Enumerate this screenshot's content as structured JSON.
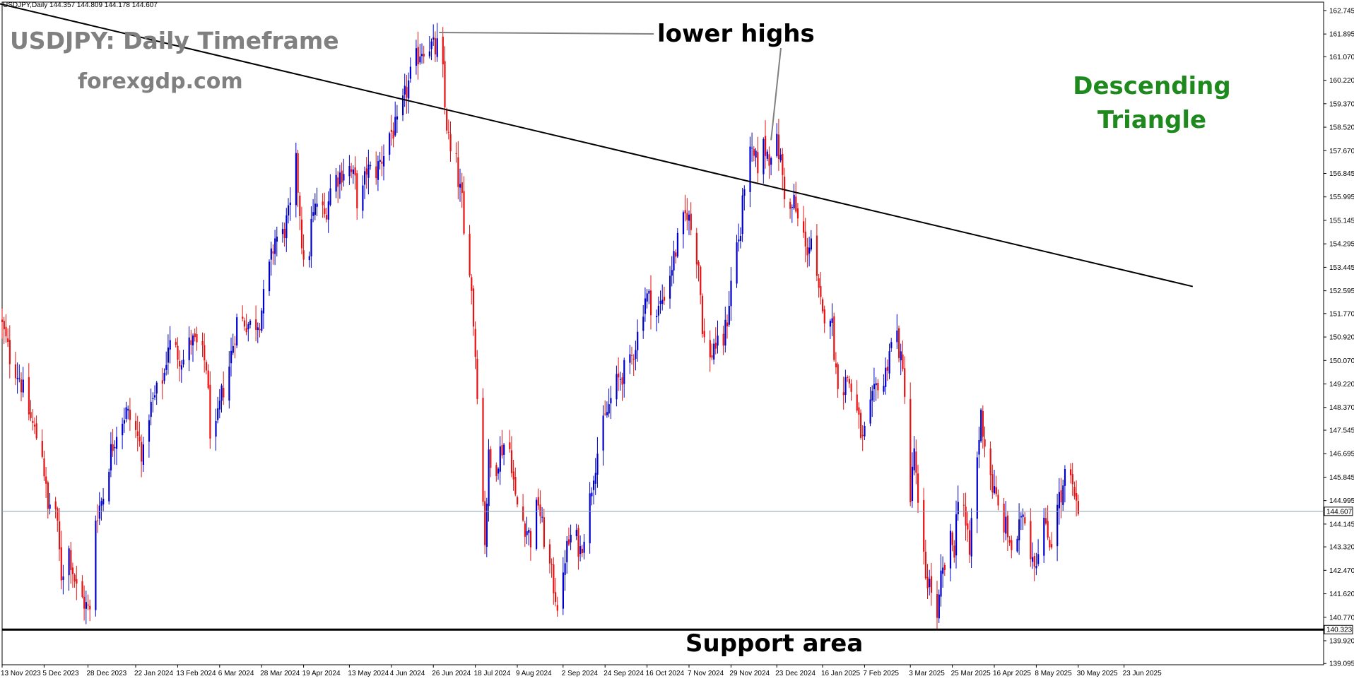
{
  "header": {
    "symbol_info": "USDJPY,Daily  144.357 144.809 144.178 144.607"
  },
  "annotations": {
    "title": "USDJPY: Daily Timeframe",
    "site": "forexgdp.com",
    "pattern_line1": "Descending",
    "pattern_line2": "Triangle",
    "lower_highs": "lower highs",
    "support_area": "Support area"
  },
  "colors": {
    "bull": "#0000cc",
    "bear": "#e81010",
    "pattern": "#1e8a1e",
    "annotation_gray": "#808080",
    "current_line": "#8aa0b8"
  },
  "chart_data": {
    "type": "candlestick",
    "title": "USDJPY: Daily Timeframe",
    "ylim": [
      139.05,
      163.05
    ],
    "y_ticks": [
      "162.745",
      "161.895",
      "161.070",
      "160.220",
      "159.370",
      "158.520",
      "157.670",
      "156.845",
      "155.995",
      "155.145",
      "154.295",
      "153.445",
      "152.595",
      "151.770",
      "150.920",
      "150.070",
      "149.220",
      "148.370",
      "147.545",
      "146.695",
      "145.845",
      "144.995",
      "144.145",
      "143.320",
      "142.470",
      "141.620",
      "140.770",
      "139.920",
      "139.095"
    ],
    "x_ticks": [
      {
        "label": "13 Nov 2023",
        "day": 0
      },
      {
        "label": "5 Dec 2023",
        "day": 22
      },
      {
        "label": "28 Dec 2023",
        "day": 45
      },
      {
        "label": "22 Jan 2024",
        "day": 70
      },
      {
        "label": "13 Feb 2024",
        "day": 92
      },
      {
        "label": "6 Mar 2024",
        "day": 114
      },
      {
        "label": "28 Mar 2024",
        "day": 136
      },
      {
        "label": "19 Apr 2024",
        "day": 158
      },
      {
        "label": "13 May 2024",
        "day": 182
      },
      {
        "label": "4 Jun 2024",
        "day": 204
      },
      {
        "label": "26 Jun 2024",
        "day": 226
      },
      {
        "label": "18 Jul 2024",
        "day": 248
      },
      {
        "label": "9 Aug 2024",
        "day": 270
      },
      {
        "label": "2 Sep 2024",
        "day": 294
      },
      {
        "label": "24 Sep 2024",
        "day": 316
      },
      {
        "label": "16 Oct 2024",
        "day": 338
      },
      {
        "label": "7 Nov 2024",
        "day": 360
      },
      {
        "label": "29 Nov 2024",
        "day": 382
      },
      {
        "label": "23 Dec 2024",
        "day": 406
      },
      {
        "label": "16 Jan 2025",
        "day": 430
      },
      {
        "label": "7 Feb 2025",
        "day": 452
      },
      {
        "label": "3 Mar 2025",
        "day": 476
      },
      {
        "label": "25 Mar 2025",
        "day": 498
      },
      {
        "label": "16 Apr 2025",
        "day": 520
      },
      {
        "label": "8 May 2025",
        "day": 542
      },
      {
        "label": "30 May 2025",
        "day": 564
      },
      {
        "label": "23 Jun 2025",
        "day": 588
      }
    ],
    "current_price": "144.607",
    "support_level": "140.323",
    "trendline": {
      "from": {
        "day": -5,
        "price": 163.05
      },
      "to": {
        "day": 624,
        "price": 152.75
      }
    },
    "lower_highs_points": [
      {
        "day": 229,
        "price": 161.95
      },
      {
        "day": 403,
        "price": 158.05
      }
    ],
    "price_path": [
      {
        "day": 0,
        "price": 151.6
      },
      {
        "day": 5,
        "price": 150.2
      },
      {
        "day": 10,
        "price": 149.5
      },
      {
        "day": 14,
        "price": 148.4
      },
      {
        "day": 18,
        "price": 147.5
      },
      {
        "day": 22,
        "price": 146.8
      },
      {
        "day": 25,
        "price": 144.6
      },
      {
        "day": 28,
        "price": 145.5
      },
      {
        "day": 32,
        "price": 142.3
      },
      {
        "day": 36,
        "price": 143.2
      },
      {
        "day": 40,
        "price": 141.8
      },
      {
        "day": 44,
        "price": 141.3
      },
      {
        "day": 47,
        "price": 140.9
      },
      {
        "day": 50,
        "price": 144.4
      },
      {
        "day": 54,
        "price": 145.2
      },
      {
        "day": 58,
        "price": 146.8
      },
      {
        "day": 62,
        "price": 147.8
      },
      {
        "day": 66,
        "price": 148.2
      },
      {
        "day": 70,
        "price": 147.7
      },
      {
        "day": 75,
        "price": 146.6
      },
      {
        "day": 78,
        "price": 148.2
      },
      {
        "day": 82,
        "price": 148.9
      },
      {
        "day": 86,
        "price": 149.6
      },
      {
        "day": 88,
        "price": 150.7
      },
      {
        "day": 92,
        "price": 150.4
      },
      {
        "day": 96,
        "price": 150.1
      },
      {
        "day": 100,
        "price": 150.8
      },
      {
        "day": 104,
        "price": 150.5
      },
      {
        "day": 108,
        "price": 149.9
      },
      {
        "day": 110,
        "price": 147.6
      },
      {
        "day": 112,
        "price": 147.0
      },
      {
        "day": 116,
        "price": 148.8
      },
      {
        "day": 120,
        "price": 149.9
      },
      {
        "day": 124,
        "price": 151.5
      },
      {
        "day": 128,
        "price": 151.5
      },
      {
        "day": 132,
        "price": 151.3
      },
      {
        "day": 136,
        "price": 151.6
      },
      {
        "day": 140,
        "price": 153.0
      },
      {
        "day": 144,
        "price": 154.5
      },
      {
        "day": 148,
        "price": 154.6
      },
      {
        "day": 152,
        "price": 155.5
      },
      {
        "day": 154,
        "price": 158.0
      },
      {
        "day": 157,
        "price": 155.5
      },
      {
        "day": 160,
        "price": 152.3
      },
      {
        "day": 163,
        "price": 155.0
      },
      {
        "day": 166,
        "price": 155.8
      },
      {
        "day": 170,
        "price": 155.3
      },
      {
        "day": 174,
        "price": 156.6
      },
      {
        "day": 178,
        "price": 156.8
      },
      {
        "day": 182,
        "price": 157.2
      },
      {
        "day": 186,
        "price": 156.5
      },
      {
        "day": 188,
        "price": 155.3
      },
      {
        "day": 192,
        "price": 157.0
      },
      {
        "day": 196,
        "price": 156.8
      },
      {
        "day": 200,
        "price": 157.4
      },
      {
        "day": 204,
        "price": 158.3
      },
      {
        "day": 208,
        "price": 158.5
      },
      {
        "day": 212,
        "price": 159.6
      },
      {
        "day": 216,
        "price": 160.6
      },
      {
        "day": 220,
        "price": 161.3
      },
      {
        "day": 224,
        "price": 161.6
      },
      {
        "day": 228,
        "price": 161.3
      },
      {
        "day": 231,
        "price": 161.7
      },
      {
        "day": 233,
        "price": 159.2
      },
      {
        "day": 236,
        "price": 157.5
      },
      {
        "day": 238,
        "price": 157.7
      },
      {
        "day": 240,
        "price": 156.6
      },
      {
        "day": 242,
        "price": 155.8
      },
      {
        "day": 244,
        "price": 153.2
      },
      {
        "day": 246,
        "price": 153.6
      },
      {
        "day": 248,
        "price": 151.5
      },
      {
        "day": 250,
        "price": 149.1
      },
      {
        "day": 252,
        "price": 146.3
      },
      {
        "day": 254,
        "price": 143.6
      },
      {
        "day": 256,
        "price": 146.5
      },
      {
        "day": 258,
        "price": 145.8
      },
      {
        "day": 262,
        "price": 146.8
      },
      {
        "day": 266,
        "price": 147.3
      },
      {
        "day": 268,
        "price": 146.4
      },
      {
        "day": 270,
        "price": 145.0
      },
      {
        "day": 274,
        "price": 144.3
      },
      {
        "day": 278,
        "price": 143.6
      },
      {
        "day": 282,
        "price": 145.0
      },
      {
        "day": 284,
        "price": 144.0
      },
      {
        "day": 287,
        "price": 142.9
      },
      {
        "day": 290,
        "price": 141.9
      },
      {
        "day": 292,
        "price": 141.3
      },
      {
        "day": 294,
        "price": 141.0
      },
      {
        "day": 296,
        "price": 143.0
      },
      {
        "day": 300,
        "price": 143.9
      },
      {
        "day": 304,
        "price": 143.2
      },
      {
        "day": 308,
        "price": 144.5
      },
      {
        "day": 311,
        "price": 146.1
      },
      {
        "day": 314,
        "price": 147.1
      },
      {
        "day": 318,
        "price": 148.2
      },
      {
        "day": 322,
        "price": 149.1
      },
      {
        "day": 326,
        "price": 149.6
      },
      {
        "day": 330,
        "price": 149.9
      },
      {
        "day": 334,
        "price": 151.0
      },
      {
        "day": 338,
        "price": 152.4
      },
      {
        "day": 340,
        "price": 152.3
      },
      {
        "day": 344,
        "price": 151.7
      },
      {
        "day": 348,
        "price": 152.5
      },
      {
        "day": 352,
        "price": 153.5
      },
      {
        "day": 356,
        "price": 154.6
      },
      {
        "day": 360,
        "price": 155.5
      },
      {
        "day": 363,
        "price": 154.5
      },
      {
        "day": 366,
        "price": 153.6
      },
      {
        "day": 368,
        "price": 151.4
      },
      {
        "day": 371,
        "price": 149.7
      },
      {
        "day": 374,
        "price": 150.7
      },
      {
        "day": 378,
        "price": 150.4
      },
      {
        "day": 381,
        "price": 151.6
      },
      {
        "day": 384,
        "price": 153.5
      },
      {
        "day": 386,
        "price": 154.3
      },
      {
        "day": 388,
        "price": 154.7
      },
      {
        "day": 391,
        "price": 157.5
      },
      {
        "day": 394,
        "price": 157.4
      },
      {
        "day": 398,
        "price": 157.1
      },
      {
        "day": 400,
        "price": 157.8
      },
      {
        "day": 403,
        "price": 157.5
      },
      {
        "day": 406,
        "price": 158.2
      },
      {
        "day": 409,
        "price": 157.3
      },
      {
        "day": 411,
        "price": 156.2
      },
      {
        "day": 413,
        "price": 155.2
      },
      {
        "day": 416,
        "price": 155.8
      },
      {
        "day": 418,
        "price": 155.1
      },
      {
        "day": 420,
        "price": 155.2
      },
      {
        "day": 422,
        "price": 154.0
      },
      {
        "day": 425,
        "price": 154.5
      },
      {
        "day": 428,
        "price": 152.8
      },
      {
        "day": 431,
        "price": 151.6
      },
      {
        "day": 434,
        "price": 152.3
      },
      {
        "day": 436,
        "price": 151.3
      },
      {
        "day": 438,
        "price": 149.7
      },
      {
        "day": 441,
        "price": 148.9
      },
      {
        "day": 444,
        "price": 149.5
      },
      {
        "day": 447,
        "price": 148.8
      },
      {
        "day": 450,
        "price": 147.8
      },
      {
        "day": 452,
        "price": 147.1
      },
      {
        "day": 455,
        "price": 148.0
      },
      {
        "day": 458,
        "price": 148.8
      },
      {
        "day": 461,
        "price": 149.6
      },
      {
        "day": 463,
        "price": 149.2
      },
      {
        "day": 466,
        "price": 150.5
      },
      {
        "day": 470,
        "price": 151.0
      },
      {
        "day": 472,
        "price": 150.0
      },
      {
        "day": 474,
        "price": 149.1
      },
      {
        "day": 476,
        "price": 147.0
      },
      {
        "day": 477,
        "price": 145.0
      },
      {
        "day": 479,
        "price": 146.9
      },
      {
        "day": 481,
        "price": 144.6
      },
      {
        "day": 483,
        "price": 143.4
      },
      {
        "day": 485,
        "price": 142.3
      },
      {
        "day": 487,
        "price": 142.0
      },
      {
        "day": 489,
        "price": 141.6
      },
      {
        "day": 491,
        "price": 140.5
      },
      {
        "day": 493,
        "price": 142.1
      },
      {
        "day": 495,
        "price": 142.6
      },
      {
        "day": 498,
        "price": 143.5
      },
      {
        "day": 500,
        "price": 143.3
      },
      {
        "day": 502,
        "price": 145.3
      },
      {
        "day": 504,
        "price": 145.7
      },
      {
        "day": 506,
        "price": 144.0
      },
      {
        "day": 508,
        "price": 143.0
      },
      {
        "day": 510,
        "price": 145.5
      },
      {
        "day": 512,
        "price": 146.5
      },
      {
        "day": 514,
        "price": 148.1
      },
      {
        "day": 516,
        "price": 147.1
      },
      {
        "day": 518,
        "price": 146.4
      },
      {
        "day": 520,
        "price": 145.5
      },
      {
        "day": 522,
        "price": 145.0
      },
      {
        "day": 524,
        "price": 144.4
      },
      {
        "day": 527,
        "price": 144.0
      },
      {
        "day": 530,
        "price": 143.3
      },
      {
        "day": 532,
        "price": 142.6
      },
      {
        "day": 535,
        "price": 144.6
      },
      {
        "day": 537,
        "price": 144.5
      },
      {
        "day": 540,
        "price": 143.2
      },
      {
        "day": 543,
        "price": 142.8
      },
      {
        "day": 546,
        "price": 144.8
      },
      {
        "day": 548,
        "price": 143.8
      },
      {
        "day": 551,
        "price": 143.5
      },
      {
        "day": 553,
        "price": 145.2
      },
      {
        "day": 556,
        "price": 145.0
      },
      {
        "day": 558,
        "price": 145.8
      },
      {
        "day": 560,
        "price": 146.3
      },
      {
        "day": 562,
        "price": 145.3
      },
      {
        "day": 564,
        "price": 144.7
      },
      {
        "day": 566,
        "price": 144.6
      }
    ]
  }
}
